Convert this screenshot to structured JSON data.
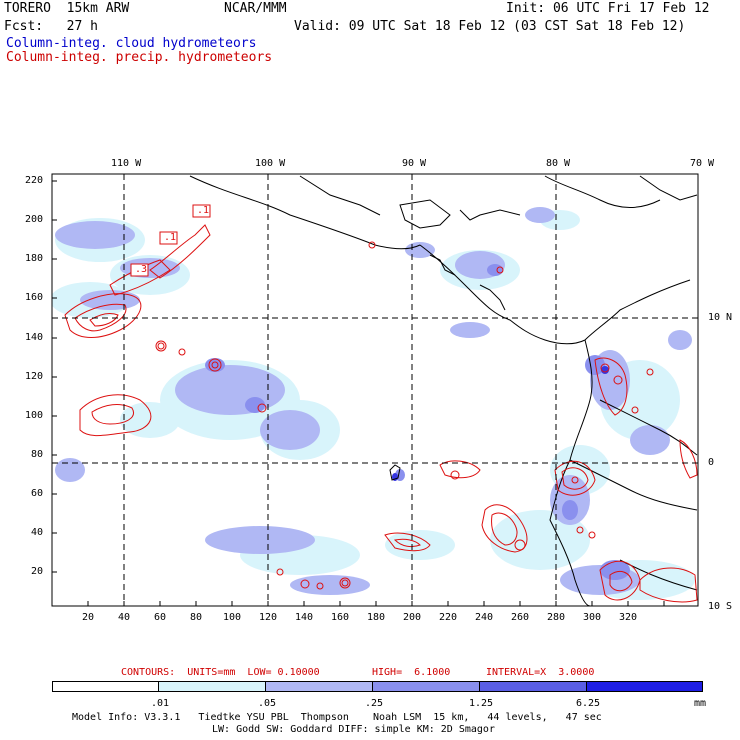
{
  "header": {
    "model": "TORERO  15km ARW",
    "org": "NCAR/MMM",
    "init": "Init: 06 UTC Fri 17 Feb 12",
    "fcst": "Fcst:   27 h",
    "valid": "Valid: 09 UTC Sat 18 Feb 12 (03 CST Sat 18 Feb 12)",
    "field1": "Column-integ. cloud hydrometeors",
    "field2": "Column-integ. precip. hydrometeors",
    "field1_color": "#0000cc",
    "field2_color": "#cc0000"
  },
  "map": {
    "lon_labels": [
      "110 W",
      "100 W",
      "90 W",
      "80 W",
      "70 W"
    ],
    "lat_labels": [
      "10 N",
      "0",
      "10 S"
    ],
    "y_ticks": [
      "220",
      "200",
      "180",
      "160",
      "140",
      "120",
      "100",
      "80",
      "60",
      "40",
      "20"
    ],
    "x_ticks": [
      "20",
      "40",
      "60",
      "80",
      "100",
      "120",
      "140",
      "160",
      "180",
      "200",
      "220",
      "240",
      "260",
      "280",
      "300",
      "320"
    ],
    "contour_labels": [
      ".1",
      ".1",
      ".3"
    ]
  },
  "contours_info": {
    "units": "CONTOURS:  UNITS=mm  LOW= 0.10000",
    "high": "HIGH=  6.1000",
    "interval": "INTERVAL=X  3.0000"
  },
  "colorbar": {
    "labels": [
      ".01",
      ".05",
      ".25",
      "1.25",
      "6.25"
    ],
    "unit": "mm",
    "colors": [
      "#ffffff",
      "#d8f4fb",
      "#b0b8f4",
      "#8a90ee",
      "#5a5ee4",
      "#3636e2",
      "#1414e6"
    ]
  },
  "footer": {
    "line1": "Model Info: V3.3.1   Tiedtke YSU PBL  Thompson    Noah LSM  15 km,   44 levels,   47 sec",
    "line2": "LW: Godd SW: Goddard DIFF: simple KM: 2D Smagor"
  }
}
